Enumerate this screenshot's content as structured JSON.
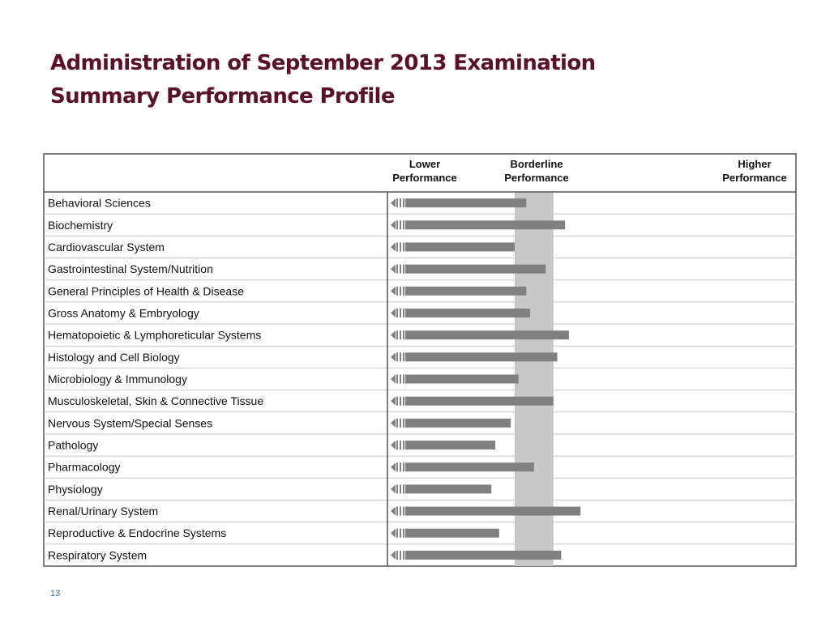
{
  "slide": {
    "title_line1": "Administration of September 2013 Examination",
    "title_line2": "Summary Performance Profile",
    "page_number": "13"
  },
  "colors": {
    "title": "#5a1028",
    "bar": "#808080",
    "borderline_band": "#c8c8c8",
    "table_border": "#555555",
    "row_divider": "#c8c8c8",
    "page_number": "#2e6fb8"
  },
  "chart_data": {
    "type": "bar",
    "orientation": "horizontal",
    "title": "",
    "xlabel": "",
    "ylabel": "",
    "header": {
      "lower": [
        "Lower",
        "Performance"
      ],
      "borderline": [
        "Borderline",
        "Performance"
      ],
      "higher": [
        "Higher",
        "Performance"
      ]
    },
    "xlim": [
      0,
      100
    ],
    "borderline_band": [
      32,
      42
    ],
    "categories": [
      "Behavioral Sciences",
      "Biochemistry",
      "Cardiovascular System",
      "Gastrointestinal System/Nutrition",
      "General Principles of Health & Disease",
      "Gross Anatomy & Embryology",
      "Hematopoietic & Lymphoreticular Systems",
      "Histology and Cell Biology",
      "Microbiology & Immunology",
      "Musculoskeletal, Skin & Connective Tissue",
      "Nervous System/Special Senses",
      "Pathology",
      "Pharmacology",
      "Physiology",
      "Renal/Urinary System",
      "Reproductive & Endocrine Systems",
      "Respiratory System"
    ],
    "values": [
      35,
      45,
      32,
      40,
      35,
      36,
      46,
      43,
      33,
      42,
      31,
      27,
      37,
      26,
      49,
      28,
      44
    ],
    "grid": false,
    "legend": "none"
  }
}
